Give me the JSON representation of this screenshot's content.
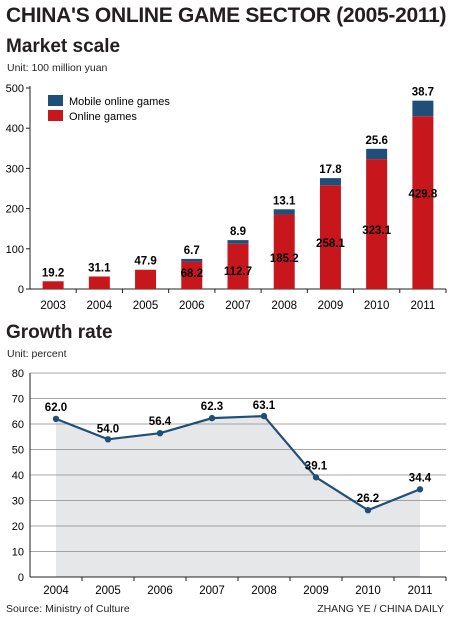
{
  "title": "CHINA'S ONLINE GAME SECTOR (2005-2011)",
  "source": "Source: Ministry of Culture",
  "credit": "ZHANG YE / CHINA DAILY",
  "colors": {
    "online": "#c8161d",
    "mobile": "#1f4e79",
    "line": "#1f4e79",
    "area": "#e6e7e8"
  },
  "chart_data": [
    {
      "type": "bar",
      "title": "Market scale",
      "subtitle": "Unit: 100 million yuan",
      "categories": [
        "2003",
        "2004",
        "2005",
        "2006",
        "2007",
        "2008",
        "2009",
        "2010",
        "2011"
      ],
      "series": [
        {
          "name": "Online games",
          "values": [
            19.2,
            31.1,
            47.9,
            68.2,
            112.7,
            185.2,
            258.1,
            323.1,
            429.8
          ]
        },
        {
          "name": "Mobile online games",
          "values": [
            0,
            0,
            0,
            6.7,
            8.9,
            13.1,
            17.8,
            25.6,
            38.7
          ]
        }
      ],
      "stacked": true,
      "ylim": [
        0,
        500
      ],
      "yticks": [
        0,
        100,
        200,
        300,
        400,
        500
      ],
      "legend_order": [
        "Mobile online games",
        "Online games"
      ],
      "legend_position": "top-left",
      "grid": false
    },
    {
      "type": "area",
      "title": "Growth rate",
      "subtitle": "Unit: percent",
      "categories": [
        "2004",
        "2005",
        "2006",
        "2007",
        "2008",
        "2009",
        "2010",
        "2011"
      ],
      "series": [
        {
          "values": [
            62.0,
            54.0,
            56.4,
            62.3,
            63.1,
            39.1,
            26.2,
            34.4
          ]
        }
      ],
      "ylim": [
        0,
        80
      ],
      "yticks": [
        0,
        10,
        20,
        30,
        40,
        50,
        60,
        70,
        80
      ],
      "grid": true
    }
  ]
}
